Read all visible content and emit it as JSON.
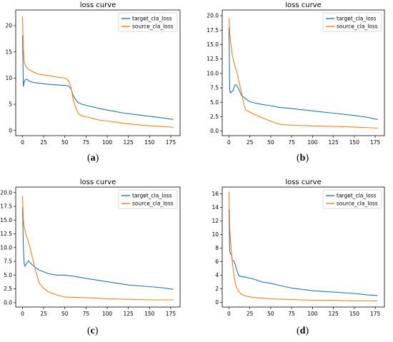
{
  "colors": {
    "target": "#1f77b4",
    "source": "#ff7f0e"
  },
  "captions": [
    {
      "open": "(",
      "letter": "a",
      "close": ")"
    },
    {
      "open": "(",
      "letter": "b",
      "close": ")"
    },
    {
      "open": "(",
      "letter": "c",
      "close": ")"
    },
    {
      "open": "(",
      "letter": "d",
      "close": ")"
    }
  ],
  "chart_data": [
    {
      "type": "line",
      "title": "loss curve",
      "xlabel": "",
      "ylabel": "",
      "xlim": [
        -8,
        186
      ],
      "ylim": [
        -1,
        23
      ],
      "xticks": [
        0,
        25,
        50,
        75,
        100,
        125,
        150,
        175
      ],
      "yticks": [
        0,
        5,
        10,
        15,
        20
      ],
      "ytick_labels": [
        "0",
        "5",
        "10",
        "15",
        "20"
      ],
      "legend_position": "top-right",
      "series": [
        {
          "name": "target_cla_loss",
          "x": [
            0,
            1,
            2,
            3,
            5,
            8,
            12,
            20,
            30,
            40,
            50,
            54,
            57,
            60,
            65,
            70,
            80,
            90,
            100,
            110,
            120,
            130,
            140,
            150,
            160,
            170,
            178
          ],
          "y": [
            18.2,
            8.4,
            9.3,
            9.6,
            9.8,
            9.4,
            9.2,
            9.0,
            8.8,
            8.7,
            8.6,
            8.5,
            8.0,
            6.6,
            5.4,
            5.0,
            4.6,
            4.2,
            3.9,
            3.6,
            3.3,
            3.1,
            2.9,
            2.7,
            2.5,
            2.3,
            2.1
          ]
        },
        {
          "name": "source_cla_loss",
          "x": [
            0,
            1,
            2,
            4,
            7,
            10,
            15,
            20,
            30,
            40,
            50,
            54,
            57,
            60,
            63,
            66,
            70,
            80,
            90,
            100,
            110,
            120,
            130,
            140,
            150,
            160,
            170,
            178
          ],
          "y": [
            21.8,
            15.8,
            13.0,
            12.2,
            11.7,
            11.4,
            11.0,
            10.7,
            10.5,
            10.2,
            10.0,
            9.6,
            8.4,
            5.8,
            4.3,
            3.2,
            2.8,
            2.4,
            2.0,
            1.8,
            1.6,
            1.3,
            1.2,
            1.0,
            0.9,
            0.8,
            0.7,
            0.6
          ]
        }
      ]
    },
    {
      "type": "line",
      "title": "loss curve",
      "xlabel": "",
      "ylabel": "",
      "xlim": [
        -8,
        186
      ],
      "ylim": [
        -0.8,
        21.0
      ],
      "xticks": [
        0,
        25,
        50,
        75,
        100,
        125,
        150,
        175
      ],
      "yticks": [
        0,
        2.5,
        5,
        7.5,
        10,
        12.5,
        15,
        17.5,
        20
      ],
      "ytick_labels": [
        "0.0",
        "2.5",
        "5.0",
        "7.5",
        "10.0",
        "12.5",
        "15.0",
        "17.5",
        "20.0"
      ],
      "legend_position": "top-right",
      "series": [
        {
          "name": "target_cla_loss",
          "x": [
            0,
            1,
            2,
            3,
            5,
            7,
            9,
            12,
            15,
            20,
            25,
            30,
            40,
            50,
            60,
            75,
            100,
            125,
            150,
            165,
            178
          ],
          "y": [
            18.0,
            7.0,
            6.6,
            6.8,
            7.0,
            8.0,
            8.0,
            7.2,
            6.2,
            5.6,
            5.1,
            4.9,
            4.6,
            4.4,
            4.1,
            3.9,
            3.5,
            3.1,
            2.7,
            2.4,
            2.0
          ]
        },
        {
          "name": "source_cla_loss",
          "x": [
            0,
            1,
            2,
            4,
            6,
            8,
            10,
            12,
            15,
            18,
            20,
            25,
            30,
            40,
            50,
            60,
            75,
            100,
            125,
            150,
            178
          ],
          "y": [
            19.6,
            17.0,
            15.5,
            13.2,
            12.0,
            10.9,
            10.0,
            8.5,
            6.8,
            4.6,
            3.7,
            3.3,
            2.9,
            2.3,
            1.7,
            1.2,
            1.0,
            0.9,
            0.8,
            0.7,
            0.5
          ]
        }
      ]
    },
    {
      "type": "line",
      "title": "loss curve",
      "xlabel": "",
      "ylabel": "",
      "xlim": [
        -8,
        186
      ],
      "ylim": [
        -0.8,
        21.0
      ],
      "xticks": [
        0,
        25,
        50,
        75,
        100,
        125,
        150,
        175
      ],
      "yticks": [
        0,
        2.5,
        5,
        7.5,
        10,
        12.5,
        15,
        17.5,
        20
      ],
      "ytick_labels": [
        "0.0",
        "2.5",
        "5.0",
        "7.5",
        "10.0",
        "12.5",
        "15.0",
        "17.5",
        "20.0"
      ],
      "legend_position": "top-right",
      "series": [
        {
          "name": "target_cla_loss",
          "x": [
            0,
            1,
            2,
            3,
            5,
            7,
            9,
            12,
            15,
            20,
            30,
            40,
            50,
            60,
            75,
            100,
            125,
            150,
            165,
            178
          ],
          "y": [
            17.4,
            10.0,
            7.0,
            6.6,
            7.2,
            7.6,
            7.2,
            6.8,
            6.4,
            5.9,
            5.3,
            5.0,
            5.0,
            4.8,
            4.4,
            3.8,
            3.2,
            2.9,
            2.7,
            2.4
          ]
        },
        {
          "name": "source_cla_loss",
          "x": [
            0,
            1,
            2,
            4,
            6,
            8,
            10,
            12,
            15,
            18,
            20,
            25,
            30,
            40,
            50,
            75,
            100,
            125,
            150,
            178
          ],
          "y": [
            19.4,
            15.0,
            13.8,
            12.4,
            11.5,
            10.5,
            9.3,
            8.0,
            6.1,
            4.5,
            3.5,
            2.6,
            2.0,
            1.4,
            1.0,
            0.9,
            0.7,
            0.6,
            0.5,
            0.5
          ]
        }
      ]
    },
    {
      "type": "line",
      "title": "loss curve",
      "xlabel": "",
      "ylabel": "",
      "xlim": [
        -8,
        186
      ],
      "ylim": [
        -0.7,
        17.0
      ],
      "xticks": [
        0,
        25,
        50,
        75,
        100,
        125,
        150,
        175
      ],
      "yticks": [
        0,
        2,
        4,
        6,
        8,
        10,
        12,
        14,
        16
      ],
      "ytick_labels": [
        "0",
        "2",
        "4",
        "6",
        "8",
        "10",
        "12",
        "14",
        "16"
      ],
      "legend_position": "top-right",
      "series": [
        {
          "name": "target_cla_loss",
          "x": [
            0,
            1,
            2,
            3,
            4,
            6,
            8,
            10,
            12,
            15,
            20,
            30,
            40,
            50,
            60,
            75,
            100,
            125,
            150,
            165,
            178
          ],
          "y": [
            13.7,
            7.6,
            7.1,
            7.0,
            6.2,
            6.1,
            5.4,
            4.5,
            3.9,
            3.8,
            3.7,
            3.4,
            3.0,
            2.8,
            2.5,
            2.1,
            1.7,
            1.5,
            1.3,
            1.1,
            1.0
          ]
        },
        {
          "name": "source_cla_loss",
          "x": [
            0,
            1,
            2,
            3,
            5,
            7,
            9,
            12,
            15,
            20,
            30,
            40,
            50,
            75,
            100,
            125,
            150,
            178
          ],
          "y": [
            16.3,
            11.0,
            9.0,
            7.3,
            5.0,
            3.2,
            2.2,
            1.6,
            1.2,
            0.9,
            0.7,
            0.6,
            0.5,
            0.4,
            0.3,
            0.3,
            0.2,
            0.2
          ]
        }
      ]
    }
  ]
}
